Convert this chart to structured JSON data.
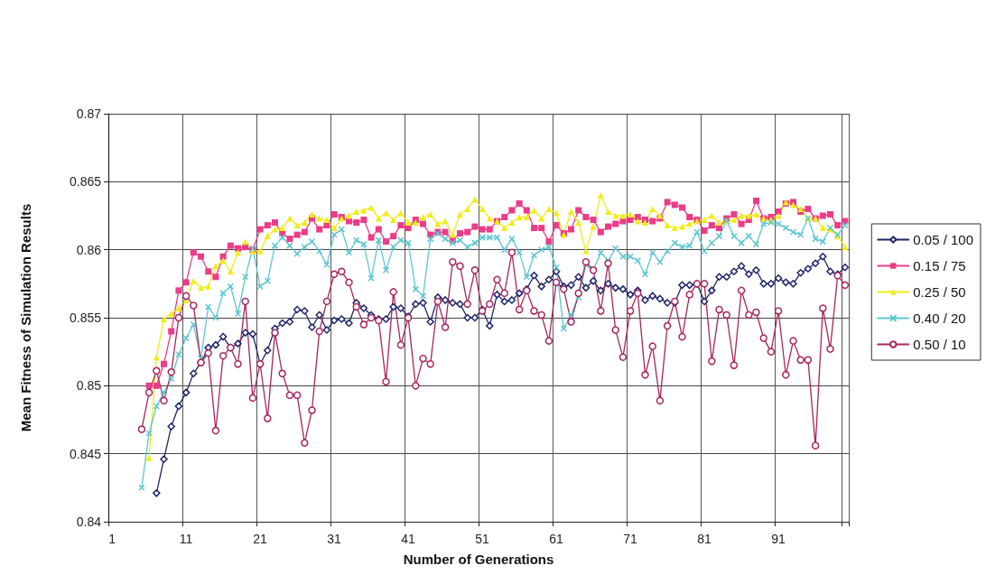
{
  "chart_data": {
    "type": "line",
    "xlabel": "Number of Generations",
    "ylabel": "Mean Fitness of Simulation Results",
    "categories": [
      "1",
      null,
      null,
      null,
      null,
      null,
      null,
      null,
      null,
      null,
      "11",
      null,
      null,
      null,
      null,
      null,
      null,
      null,
      null,
      null,
      "21",
      null,
      null,
      null,
      null,
      null,
      null,
      null,
      null,
      null,
      "31",
      null,
      null,
      null,
      null,
      null,
      null,
      null,
      null,
      null,
      "41",
      null,
      null,
      null,
      null,
      null,
      null,
      null,
      null,
      null,
      "51",
      null,
      null,
      null,
      null,
      null,
      null,
      null,
      null,
      null,
      "61",
      null,
      null,
      null,
      null,
      null,
      null,
      null,
      null,
      null,
      "71",
      null,
      null,
      null,
      null,
      null,
      null,
      null,
      null,
      null,
      "81",
      null,
      null,
      null,
      null,
      null,
      null,
      null,
      null,
      null,
      "91",
      null,
      null,
      null,
      null,
      null,
      null,
      null,
      null,
      null
    ],
    "ylim": [
      0.84,
      0.87
    ],
    "yticks": [
      0.84,
      0.845,
      0.85,
      0.855,
      0.86,
      0.865,
      0.87
    ],
    "grid": true,
    "legend": "right",
    "series": [
      {
        "name": "0.05 / 100",
        "color": "#1e2468",
        "marker": "diamond",
        "values": [
          null,
          null,
          null,
          null,
          null,
          null,
          0.8421,
          0.8446,
          0.847,
          0.8485,
          0.8495,
          0.8509,
          0.8517,
          0.8528,
          0.853,
          0.8536,
          0.8528,
          0.8531,
          0.8539,
          0.8538,
          0.8516,
          0.8526,
          0.8542,
          0.8546,
          0.8547,
          0.8556,
          0.8555,
          0.8543,
          0.8552,
          0.8541,
          0.8548,
          0.8549,
          0.8546,
          0.8561,
          0.8557,
          0.8552,
          0.8549,
          0.8549,
          0.8558,
          0.8557,
          0.8551,
          0.856,
          0.8561,
          0.8547,
          0.8565,
          0.8563,
          0.8561,
          0.856,
          0.855,
          0.855,
          0.8556,
          0.8544,
          0.8567,
          0.8562,
          0.8563,
          0.8568,
          0.8571,
          0.8581,
          0.8573,
          0.8578,
          0.8584,
          0.8573,
          0.8574,
          0.858,
          0.8572,
          0.8577,
          0.857,
          0.8575,
          0.8572,
          0.8571,
          0.8567,
          0.857,
          0.8563,
          0.8566,
          0.8564,
          0.8561,
          0.8561,
          0.8574,
          0.8574,
          0.8575,
          0.8562,
          0.857,
          0.858,
          0.858,
          0.8584,
          0.8588,
          0.8582,
          0.8585,
          0.8575,
          0.8575,
          0.8579,
          0.8576,
          0.8575,
          0.8583,
          0.8586,
          0.859,
          0.8595,
          0.8584,
          0.8582,
          0.8587
        ]
      },
      {
        "name": "0.15 / 75",
        "color": "#ec3c88",
        "marker": "square",
        "values": [
          null,
          null,
          null,
          null,
          null,
          0.85,
          0.85,
          0.8516,
          0.854,
          0.857,
          0.8576,
          0.8598,
          0.8595,
          0.8584,
          0.858,
          0.8595,
          0.8603,
          0.8601,
          0.8602,
          0.86,
          0.8615,
          0.8618,
          0.862,
          0.8612,
          0.8608,
          0.8611,
          0.8613,
          0.8623,
          0.8615,
          0.8618,
          0.8626,
          0.8624,
          0.8621,
          0.862,
          0.8622,
          0.8609,
          0.8615,
          0.8606,
          0.861,
          0.8618,
          0.8616,
          0.8622,
          0.8619,
          0.8611,
          0.8613,
          0.8613,
          0.8607,
          0.8612,
          0.8613,
          0.8617,
          0.8615,
          0.8615,
          0.8621,
          0.8624,
          0.8629,
          0.8634,
          0.8629,
          0.8616,
          0.8616,
          0.8606,
          0.8618,
          0.8612,
          0.8615,
          0.8629,
          0.8624,
          0.8622,
          0.8613,
          0.8617,
          0.8619,
          0.8621,
          0.8622,
          0.8624,
          0.8622,
          0.8621,
          0.8623,
          0.8635,
          0.8633,
          0.8631,
          0.8624,
          0.8622,
          0.8614,
          0.8618,
          0.8616,
          0.8623,
          0.8626,
          0.8619,
          0.8622,
          0.8636,
          0.8623,
          0.8624,
          0.8628,
          0.8634,
          0.8635,
          0.8628,
          0.863,
          0.8623,
          0.8625,
          0.8626,
          0.8618,
          0.8621
        ]
      },
      {
        "name": "0.25 / 50",
        "color": "#f0ec1a",
        "marker": "triangle",
        "values": [
          null,
          null,
          null,
          null,
          null,
          0.8447,
          0.8521,
          0.8549,
          0.8553,
          0.8557,
          0.8563,
          0.8577,
          0.8572,
          0.8573,
          0.8588,
          0.8592,
          0.8584,
          0.8598,
          0.8606,
          0.8599,
          0.8599,
          0.861,
          0.8615,
          0.8616,
          0.8623,
          0.8618,
          0.862,
          0.8626,
          0.8623,
          0.8622,
          0.8616,
          0.8623,
          0.8625,
          0.8628,
          0.8629,
          0.8631,
          0.8623,
          0.8627,
          0.8622,
          0.8627,
          0.862,
          0.862,
          0.8624,
          0.8626,
          0.8619,
          0.8621,
          0.8611,
          0.8626,
          0.863,
          0.8637,
          0.863,
          0.8623,
          0.8621,
          0.8616,
          0.862,
          0.8624,
          0.8624,
          0.8629,
          0.8623,
          0.863,
          0.8627,
          0.8611,
          0.8628,
          0.862,
          0.8599,
          0.8617,
          0.864,
          0.8628,
          0.8625,
          0.8625,
          0.8626,
          0.8621,
          0.862,
          0.863,
          0.8625,
          0.8618,
          0.8616,
          0.8617,
          0.8619,
          0.8621,
          0.8622,
          0.8625,
          0.862,
          0.8621,
          0.8622,
          0.8625,
          0.8625,
          0.8626,
          0.8623,
          0.8622,
          0.8625,
          0.8635,
          0.8633,
          0.863,
          0.8623,
          0.8623,
          0.8616,
          0.8615,
          0.861,
          0.8602
        ]
      },
      {
        "name": "0.40 / 20",
        "color": "#5ec6d2",
        "marker": "cross",
        "values": [
          null,
          null,
          null,
          null,
          0.8425,
          0.8465,
          0.8485,
          0.8495,
          0.8505,
          0.8523,
          0.8535,
          0.8545,
          0.852,
          0.8558,
          0.855,
          0.8568,
          0.8573,
          0.8553,
          0.858,
          0.8601,
          0.8573,
          0.8577,
          0.8603,
          0.8609,
          0.8603,
          0.8597,
          0.8602,
          0.8606,
          0.8599,
          0.8589,
          0.8611,
          0.8615,
          0.8598,
          0.8607,
          0.8604,
          0.8579,
          0.8607,
          0.8585,
          0.8602,
          0.8607,
          0.8605,
          0.8571,
          0.8566,
          0.8608,
          0.8612,
          0.8608,
          0.8605,
          0.8607,
          0.8602,
          0.8605,
          0.8609,
          0.8609,
          0.8609,
          0.86,
          0.8608,
          0.8598,
          0.858,
          0.8596,
          0.86,
          0.8602,
          0.8587,
          0.8542,
          0.8552,
          0.8565,
          0.8589,
          0.8585,
          0.8598,
          0.8592,
          0.8601,
          0.8595,
          0.8595,
          0.8592,
          0.8582,
          0.8598,
          0.8591,
          0.8599,
          0.8605,
          0.8602,
          0.8603,
          0.8613,
          0.8599,
          0.8605,
          0.861,
          0.8621,
          0.861,
          0.8605,
          0.861,
          0.8604,
          0.8619,
          0.862,
          0.8619,
          0.8616,
          0.8613,
          0.8611,
          0.8623,
          0.8608,
          0.8606,
          0.8616,
          0.8611,
          0.8618
        ]
      },
      {
        "name": "0.50 / 10",
        "color": "#a8245e",
        "marker": "circle",
        "values": [
          null,
          null,
          null,
          null,
          0.8468,
          0.8495,
          0.8511,
          0.8489,
          0.851,
          0.855,
          0.8566,
          0.8559,
          0.8517,
          0.8524,
          0.8467,
          0.8522,
          0.8528,
          0.8516,
          0.8562,
          0.8491,
          0.8516,
          0.8476,
          0.8539,
          0.8509,
          0.8493,
          0.8493,
          0.8458,
          0.8482,
          0.854,
          0.8562,
          0.8582,
          0.8584,
          0.8576,
          0.8558,
          0.8545,
          0.855,
          0.8548,
          0.8503,
          0.8569,
          0.853,
          0.855,
          0.85,
          0.852,
          0.8516,
          0.8562,
          0.8543,
          0.8591,
          0.8588,
          0.856,
          0.8585,
          0.8555,
          0.856,
          0.8578,
          0.8568,
          0.8598,
          0.8556,
          0.857,
          0.8555,
          0.8552,
          0.8533,
          0.8576,
          0.8571,
          0.8547,
          0.8568,
          0.8591,
          0.8585,
          0.8555,
          0.859,
          0.8541,
          0.8521,
          0.8555,
          0.8568,
          0.8508,
          0.8529,
          0.8489,
          0.8544,
          0.8562,
          0.8536,
          0.8567,
          0.8575,
          0.8575,
          0.8518,
          0.8556,
          0.8552,
          0.8515,
          0.857,
          0.8552,
          0.8554,
          0.8535,
          0.8525,
          0.8555,
          0.8508,
          0.8533,
          0.8519,
          0.8519,
          0.8456,
          0.8557,
          0.8527,
          0.8581,
          0.8574
        ]
      }
    ]
  }
}
